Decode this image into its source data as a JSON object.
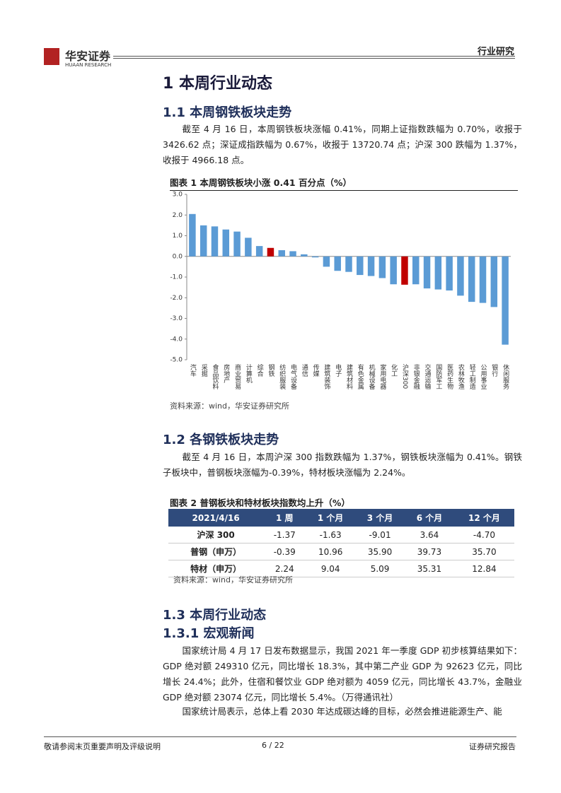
{
  "header": {
    "brand": "华安证券",
    "brand_en": "HUAAN RESEARCH",
    "section": "行业研究"
  },
  "h1": "1 本周行业动态",
  "s11": {
    "heading": "1.1 本周钢铁板块走势",
    "paragraph": "截至 4 月 16 日，本周钢铁板块涨幅 0.41%，同期上证指数跌幅为 0.70%，收报于 3426.62 点；深证成指跌幅为 0.67%，收报于 13720.74 点；沪深 300 跌幅为 1.37%，收报于 4966.18 点。"
  },
  "figure1": {
    "title": "图表 1 本周钢铁板块小涨 0.41 百分点（%）",
    "source": "资料来源：wind，华安证券研究所"
  },
  "chart_data": {
    "type": "bar",
    "categories": [
      "汽车",
      "采掘",
      "食品饮料",
      "房地产",
      "商业贸易",
      "计算机",
      "综合",
      "钢铁",
      "纺织服装",
      "电气设备",
      "通信",
      "传媒",
      "建筑装饰",
      "电子",
      "建筑材料",
      "有色金属",
      "机械设备",
      "家用电器",
      "化工",
      "沪深300",
      "非银金融",
      "交通运输",
      "国防军工",
      "医药生物",
      "农林牧渔",
      "轻工制造",
      "公用事业",
      "银行",
      "休闲服务"
    ],
    "values": [
      2.05,
      1.5,
      1.45,
      1.3,
      1.2,
      0.9,
      0.5,
      0.41,
      0.3,
      0.25,
      0.1,
      -0.05,
      -0.5,
      -0.7,
      -0.75,
      -0.9,
      -0.95,
      -1.05,
      -1.35,
      -1.37,
      -1.35,
      -1.55,
      -1.6,
      -1.65,
      -1.9,
      -2.2,
      -2.25,
      -2.45,
      -4.27
    ],
    "colors": [
      "#5b9bd5",
      "#5b9bd5",
      "#5b9bd5",
      "#5b9bd5",
      "#5b9bd5",
      "#5b9bd5",
      "#5b9bd5",
      "#c00000",
      "#5b9bd5",
      "#5b9bd5",
      "#5b9bd5",
      "#5b9bd5",
      "#5b9bd5",
      "#5b9bd5",
      "#5b9bd5",
      "#5b9bd5",
      "#5b9bd5",
      "#5b9bd5",
      "#5b9bd5",
      "#c00000",
      "#5b9bd5",
      "#5b9bd5",
      "#5b9bd5",
      "#5b9bd5",
      "#5b9bd5",
      "#5b9bd5",
      "#5b9bd5",
      "#5b9bd5",
      "#5b9bd5"
    ],
    "ylim": [
      -5,
      3
    ],
    "yticks": [
      {
        "value": 3,
        "label": "3.0"
      },
      {
        "value": 2,
        "label": "2.0"
      },
      {
        "value": 1,
        "label": "1.0"
      },
      {
        "value": 0,
        "label": "0.0"
      },
      {
        "value": -1,
        "label": "-1.0"
      },
      {
        "value": -2,
        "label": "-2.0"
      },
      {
        "value": -3,
        "label": "-3.0"
      },
      {
        "value": -4,
        "label": "-4.0"
      },
      {
        "value": -5,
        "label": "-5.0"
      }
    ],
    "grid": false
  },
  "s12": {
    "heading": "1.2 各钢铁板块走势",
    "paragraph": "截至 4 月 16 日，本周沪深 300 指数跌幅为 1.37%，钢铁板块涨幅为 0.41%。钢铁子板块中，普钢板块涨幅为-0.39%，特材板块涨幅为 2.24%。"
  },
  "figure2": {
    "title": "图表 2 普钢板块和特材板块指数均上升（%）",
    "source": "资料来源：wind，华安证券研究所"
  },
  "table": {
    "header": [
      "2021/4/16",
      "1 周",
      "1 个月",
      "3 个月",
      "6 个月",
      "12 个月"
    ],
    "rows": [
      [
        "沪深 300",
        "-1.37",
        "-1.63",
        "-9.01",
        "3.64",
        "-4.70"
      ],
      [
        "普钢（申万）",
        "-0.39",
        "10.96",
        "35.90",
        "39.73",
        "35.70"
      ],
      [
        "特材（申万）",
        "2.24",
        "9.04",
        "5.09",
        "35.31",
        "12.84"
      ]
    ]
  },
  "s13": {
    "heading": "1.3 本周行业动态"
  },
  "s131": {
    "heading": "1.3.1 宏观新闻",
    "paragraphs": [
      "国家统计局 4 月 17 日发布数据显示，我国 2021 年一季度 GDP 初步核算结果如下：GDP 绝对额 249310 亿元，同比增长 18.3%，其中第二产业 GDP 为 92623 亿元，同比增长 24.4%；此外，住宿和餐饮业 GDP 绝对额为 4059 亿元，同比增长 43.7%，金融业 GDP 绝对额 23074 亿元，同比增长 5.4%。（万得通讯社）",
      "国家统计局表示，总体上看 2030 年达成碳达峰的目标，必然会推进能源生产、能"
    ]
  },
  "footer": {
    "left": "敬请参阅末页重要声明及评级说明",
    "page": "6 / 22",
    "right": "证券研究报告"
  }
}
